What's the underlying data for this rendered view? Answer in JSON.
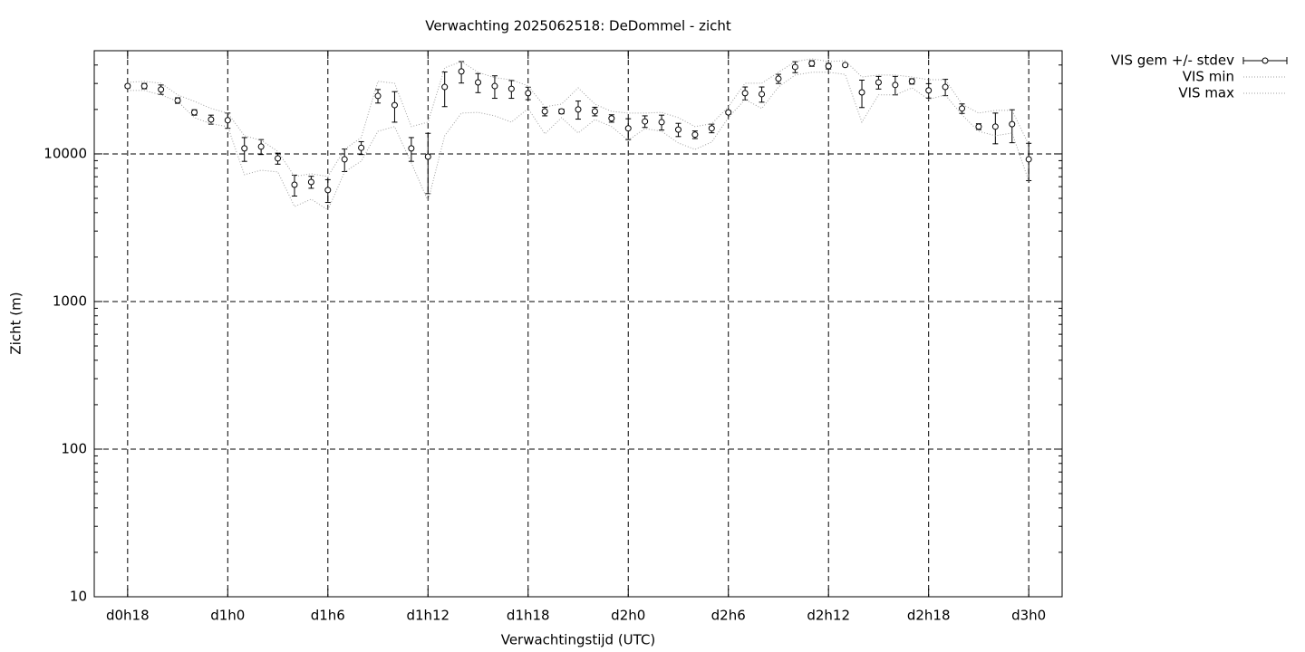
{
  "chart_data": {
    "type": "errorbar",
    "title": "Verwachting 2025062518: DeDommel - zicht",
    "x_label": "Verwachtingstijd (UTC)",
    "y_label": "Zicht (m)",
    "log_scale": true,
    "grid": true,
    "legend": "outside-top-right",
    "xlim": [
      16,
      74
    ],
    "ylim": [
      10,
      50000
    ],
    "xticks": [
      {
        "value": 18,
        "label": "d0h18"
      },
      {
        "value": 24,
        "label": "d1h0"
      },
      {
        "value": 30,
        "label": "d1h6"
      },
      {
        "value": 36,
        "label": "d1h12"
      },
      {
        "value": 42,
        "label": "d1h18"
      },
      {
        "value": 48,
        "label": "d2h0"
      },
      {
        "value": 54,
        "label": "d2h6"
      },
      {
        "value": 60,
        "label": "d2h12"
      },
      {
        "value": 66,
        "label": "d2h18"
      },
      {
        "value": 72,
        "label": "d3h0"
      }
    ],
    "yticks": [
      10,
      100,
      1000,
      10000
    ],
    "x": [
      18,
      19,
      20,
      21,
      22,
      23,
      24,
      25,
      26,
      27,
      28,
      29,
      30,
      31,
      32,
      33,
      34,
      35,
      36,
      37,
      38,
      39,
      40,
      41,
      42,
      43,
      44,
      45,
      46,
      47,
      48,
      49,
      50,
      51,
      52,
      53,
      54,
      55,
      56,
      57,
      58,
      59,
      60,
      61,
      62,
      63,
      64,
      65,
      66,
      67,
      68,
      69,
      70,
      71,
      72
    ],
    "series": [
      {
        "name": "VIS gem +/- stdev",
        "color": "#000000",
        "values": [
          28800,
          28800,
          27300,
          23000,
          19100,
          17100,
          16900,
          10900,
          11200,
          9320,
          6180,
          6450,
          5690,
          9190,
          11000,
          24700,
          21400,
          10900,
          9580,
          28400,
          36200,
          30500,
          28800,
          27600,
          25800,
          19400,
          19400,
          20000,
          19400,
          17400,
          14900,
          16600,
          16400,
          14600,
          13500,
          14900,
          19100,
          25800,
          25400,
          32300,
          38800,
          41000,
          39300,
          40000,
          26100,
          30500,
          29300,
          31000,
          26900,
          28400,
          20300,
          15300,
          15300,
          15900,
          9190
        ],
        "errors": [
          800,
          1200,
          2000,
          1000,
          800,
          1200,
          2000,
          2000,
          1300,
          800,
          1000,
          600,
          1000,
          1600,
          1100,
          2600,
          5000,
          2000,
          4200,
          7500,
          6000,
          4500,
          5000,
          3800,
          2500,
          1300,
          700,
          2800,
          1300,
          1000,
          2400,
          1500,
          1900,
          1500,
          800,
          1000,
          500,
          2600,
          3000,
          2300,
          3300,
          1800,
          1700,
          1000,
          5500,
          3000,
          4200,
          1300,
          3000,
          3600,
          1500,
          700,
          3600,
          4000,
          2600
        ]
      },
      {
        "name": "VIS min",
        "color": "#a0a0a0",
        "values": [
          26900,
          26900,
          25100,
          22700,
          17600,
          16000,
          15300,
          7230,
          7750,
          7540,
          4400,
          4940,
          4170,
          7540,
          8930,
          14230,
          15300,
          8680,
          4800,
          13270,
          18900,
          19100,
          18100,
          16400,
          20300,
          13650,
          17600,
          13840,
          17100,
          15300,
          12360,
          14850,
          14230,
          11850,
          10730,
          12020,
          17600,
          23400,
          20300,
          28400,
          34200,
          35700,
          35700,
          34600,
          16400,
          25100,
          25100,
          28000,
          23400,
          25100,
          18360,
          14230,
          13270,
          13840,
          6550
        ]
      },
      {
        "name": "VIS max",
        "color": "#a0a0a0",
        "values": [
          30500,
          31000,
          30100,
          25100,
          22700,
          20300,
          18900,
          13270,
          12360,
          10400,
          7030,
          7330,
          7030,
          10730,
          12900,
          31000,
          30100,
          15300,
          16400,
          38300,
          42200,
          35700,
          32800,
          31800,
          28850,
          20850,
          21740,
          28000,
          21740,
          19400,
          18900,
          18900,
          19100,
          17600,
          15300,
          16000,
          20850,
          30100,
          30100,
          35700,
          42200,
          44100,
          42200,
          42800,
          33200,
          34200,
          34200,
          33200,
          31800,
          31800,
          21740,
          18900,
          19700,
          19700,
          11520
        ]
      }
    ]
  }
}
